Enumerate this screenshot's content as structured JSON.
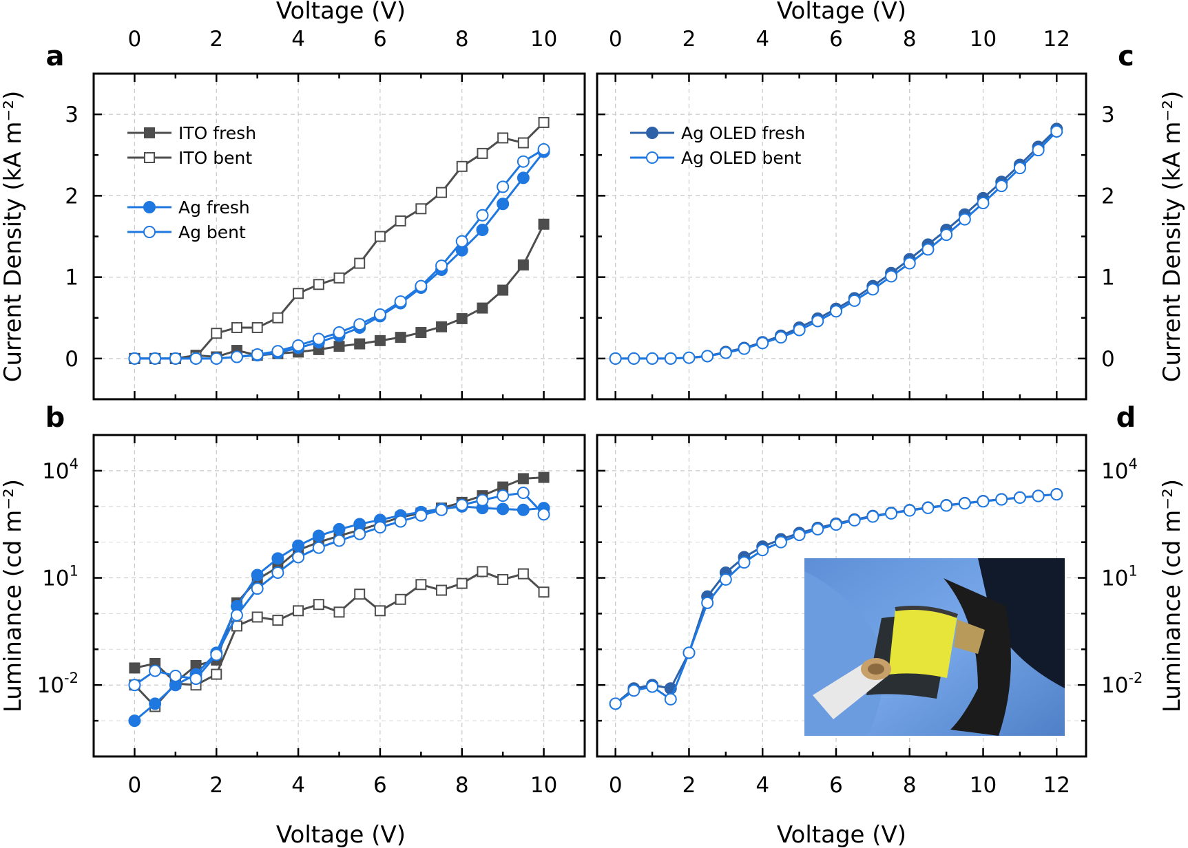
{
  "figure": {
    "top_axis_title": "Voltage (V)",
    "bottom_axis_title": "Voltage (V)",
    "inset": "photo-of-bent-flexible-oled-held-in-blue-gloves"
  },
  "chart_data": [
    {
      "id": "a",
      "panel_label": "a",
      "type": "line",
      "xlabel": "Voltage (V)",
      "ylabel": "Current Density (kA m⁻²)",
      "xlim": [
        -1,
        11
      ],
      "ylim": [
        -0.5,
        3.5
      ],
      "yscale": "linear",
      "xticks": [
        0,
        2,
        4,
        6,
        8,
        10
      ],
      "yticks": [
        0,
        1,
        2,
        3
      ],
      "grid": true,
      "legend": "top-left",
      "series": [
        {
          "name": "ITO fresh",
          "color": "#4d4d4d",
          "marker": "square",
          "filled": true,
          "x": [
            0,
            0.5,
            1,
            1.5,
            2,
            2.5,
            3,
            3.5,
            4,
            4.5,
            5,
            5.5,
            6,
            6.5,
            7,
            7.5,
            8,
            8.5,
            9,
            9.5,
            10
          ],
          "y": [
            0,
            0,
            0,
            0.04,
            0.02,
            0.1,
            0.04,
            0.06,
            0.08,
            0.11,
            0.15,
            0.18,
            0.22,
            0.26,
            0.32,
            0.39,
            0.49,
            0.62,
            0.84,
            1.15,
            1.65
          ]
        },
        {
          "name": "ITO bent",
          "color": "#4d4d4d",
          "marker": "square",
          "filled": false,
          "x": [
            0,
            0.5,
            1,
            1.5,
            2,
            2.5,
            3,
            3.5,
            4,
            4.5,
            5,
            5.5,
            6,
            6.5,
            7,
            7.5,
            8,
            8.5,
            9,
            9.5,
            10
          ],
          "y": [
            0,
            0,
            0,
            0.02,
            0.31,
            0.38,
            0.38,
            0.5,
            0.8,
            0.91,
            0.99,
            1.17,
            1.5,
            1.69,
            1.84,
            2.04,
            2.36,
            2.52,
            2.71,
            2.65,
            2.9
          ]
        },
        {
          "name": "Ag fresh",
          "color": "#1f77e0",
          "marker": "circle",
          "filled": true,
          "x": [
            0,
            0.5,
            1,
            1.5,
            2,
            2.5,
            3,
            3.5,
            4,
            4.5,
            5,
            5.5,
            6,
            6.5,
            7,
            7.5,
            8,
            8.5,
            9,
            9.5,
            10
          ],
          "y": [
            0,
            0,
            0,
            0,
            0,
            0.02,
            0.04,
            0.07,
            0.13,
            0.2,
            0.28,
            0.38,
            0.52,
            0.68,
            0.87,
            1.09,
            1.33,
            1.58,
            1.9,
            2.22,
            2.54
          ]
        },
        {
          "name": "Ag bent",
          "color": "#1f77e0",
          "marker": "circle",
          "filled": false,
          "x": [
            0,
            0.5,
            1,
            1.5,
            2,
            2.5,
            3,
            3.5,
            4,
            4.5,
            5,
            5.5,
            6,
            6.5,
            7,
            7.5,
            8,
            8.5,
            9,
            9.5,
            10
          ],
          "y": [
            0,
            0,
            0,
            0,
            0,
            0.02,
            0.05,
            0.09,
            0.16,
            0.24,
            0.32,
            0.42,
            0.54,
            0.7,
            0.89,
            1.14,
            1.44,
            1.76,
            2.11,
            2.42,
            2.57
          ]
        }
      ]
    },
    {
      "id": "b",
      "panel_label": "b",
      "type": "line",
      "xlabel": "Voltage (V)",
      "ylabel": "Luminance (cd m⁻²)",
      "xlim": [
        -1,
        11
      ],
      "ylim": [
        0.0001,
        100000
      ],
      "yscale": "log",
      "xticks": [
        0,
        2,
        4,
        6,
        8,
        10
      ],
      "yticks": [
        0.01,
        10,
        10000
      ],
      "ytick_labels": [
        {
          "base": "10",
          "exp": "-2"
        },
        {
          "base": "10",
          "exp": "1"
        },
        {
          "base": "10",
          "exp": "4"
        }
      ],
      "grid": true,
      "series": [
        {
          "name": "ITO fresh",
          "color": "#4d4d4d",
          "marker": "square",
          "filled": true,
          "x": [
            0,
            0.5,
            1,
            1.5,
            2,
            2.5,
            3,
            3.5,
            4,
            4.5,
            5,
            5.5,
            6,
            6.5,
            7,
            7.5,
            8,
            8.5,
            9,
            9.5,
            10
          ],
          "y": [
            0.03,
            0.04,
            0.012,
            0.035,
            0.05,
            2,
            9,
            20,
            60,
            100,
            150,
            220,
            330,
            500,
            650,
            900,
            1300,
            2000,
            3500,
            6000,
            6500
          ]
        },
        {
          "name": "ITO bent",
          "color": "#4d4d4d",
          "marker": "square",
          "filled": false,
          "x": [
            0,
            0.5,
            1,
            1.5,
            2,
            2.5,
            3,
            3.5,
            4,
            4.5,
            5,
            5.5,
            6,
            6.5,
            7,
            7.5,
            8,
            8.5,
            9,
            9.5,
            10
          ],
          "y": [
            0.01,
            0.0025,
            0.011,
            0.01,
            0.02,
            0.45,
            0.8,
            0.65,
            1.2,
            1.8,
            1.1,
            3.5,
            1.2,
            2.5,
            6.5,
            4.5,
            7,
            15,
            9,
            13,
            4
          ]
        },
        {
          "name": "Ag fresh",
          "color": "#1f77e0",
          "marker": "circle",
          "filled": true,
          "x": [
            0,
            0.5,
            1,
            1.5,
            2,
            2.5,
            3,
            3.5,
            4,
            4.5,
            5,
            5.5,
            6,
            6.5,
            7,
            7.5,
            8,
            8.5,
            9,
            9.5,
            10
          ],
          "y": [
            0.001,
            0.003,
            0.01,
            0.02,
            0.08,
            1.6,
            12,
            35,
            80,
            150,
            230,
            320,
            420,
            560,
            700,
            850,
            1000,
            900,
            850,
            800,
            900
          ]
        },
        {
          "name": "Ag bent",
          "color": "#1f77e0",
          "marker": "circle",
          "filled": false,
          "x": [
            0,
            0.5,
            1,
            1.5,
            2,
            2.5,
            3,
            3.5,
            4,
            4.5,
            5,
            5.5,
            6,
            6.5,
            7,
            7.5,
            8,
            8.5,
            9,
            9.5,
            10
          ],
          "y": [
            0.01,
            0.025,
            0.018,
            0.015,
            0.07,
            0.9,
            5,
            14,
            38,
            70,
            110,
            170,
            260,
            380,
            560,
            800,
            1100,
            1500,
            2000,
            2400,
            600
          ]
        }
      ]
    },
    {
      "id": "c",
      "panel_label": "c",
      "type": "line",
      "xlabel": "Voltage (V)",
      "ylabel": "Current Density (kA m⁻²)",
      "xlim": [
        -0.5,
        12.8
      ],
      "ylim": [
        -0.5,
        3.5
      ],
      "yscale": "linear",
      "xticks": [
        0,
        2,
        4,
        6,
        8,
        10,
        12
      ],
      "yticks": [
        0,
        1,
        2,
        3
      ],
      "grid": true,
      "legend": "top-left",
      "series": [
        {
          "name": "Ag OLED fresh",
          "color": "#2e62a8",
          "marker": "circle",
          "filled": true,
          "x": [
            0,
            0.5,
            1,
            1.5,
            2,
            2.5,
            3,
            3.5,
            4,
            4.5,
            5,
            5.5,
            6,
            6.5,
            7,
            7.5,
            8,
            8.5,
            9,
            9.5,
            10,
            10.5,
            11,
            11.5,
            12
          ],
          "y": [
            0,
            0,
            0,
            0,
            0.01,
            0.03,
            0.08,
            0.13,
            0.2,
            0.28,
            0.38,
            0.49,
            0.61,
            0.74,
            0.89,
            1.05,
            1.22,
            1.4,
            1.58,
            1.77,
            1.97,
            2.17,
            2.38,
            2.6,
            2.82
          ]
        },
        {
          "name": "Ag OLED bent",
          "color": "#1f77e0",
          "marker": "circle",
          "filled": false,
          "x": [
            0,
            0.5,
            1,
            1.5,
            2,
            2.5,
            3,
            3.5,
            4,
            4.5,
            5,
            5.5,
            6,
            6.5,
            7,
            7.5,
            8,
            8.5,
            9,
            9.5,
            10,
            10.5,
            11,
            11.5,
            12
          ],
          "y": [
            0,
            0,
            0,
            0,
            0.01,
            0.03,
            0.07,
            0.12,
            0.19,
            0.26,
            0.35,
            0.46,
            0.58,
            0.71,
            0.85,
            1.01,
            1.17,
            1.34,
            1.52,
            1.71,
            1.91,
            2.12,
            2.34,
            2.56,
            2.79
          ]
        }
      ]
    },
    {
      "id": "d",
      "panel_label": "d",
      "type": "line",
      "xlabel": "Voltage (V)",
      "ylabel": "Luminance (cd m⁻²)",
      "xlim": [
        -0.5,
        12.8
      ],
      "ylim": [
        0.0001,
        100000
      ],
      "yscale": "log",
      "xticks": [
        0,
        2,
        4,
        6,
        8,
        10,
        12
      ],
      "yticks": [
        0.01,
        10,
        10000
      ],
      "ytick_labels": [
        {
          "base": "10",
          "exp": "-2"
        },
        {
          "base": "10",
          "exp": "1"
        },
        {
          "base": "10",
          "exp": "4"
        }
      ],
      "grid": true,
      "series": [
        {
          "name": "Ag OLED fresh",
          "color": "#2e62a8",
          "marker": "circle",
          "filled": true,
          "x": [
            0,
            0.5,
            1,
            1.5,
            2,
            2.5,
            3,
            3.5,
            4,
            4.5,
            5,
            5.5,
            6,
            6.5,
            7,
            7.5,
            8,
            8.5,
            9,
            9.5,
            10,
            10.5,
            11,
            11.5,
            12
          ],
          "y": [
            0.003,
            0.008,
            0.01,
            0.008,
            0.08,
            3,
            14,
            38,
            75,
            120,
            180,
            250,
            330,
            430,
            540,
            660,
            790,
            930,
            1080,
            1240,
            1410,
            1590,
            1780,
            1980,
            2200
          ]
        },
        {
          "name": "Ag OLED bent",
          "color": "#1f77e0",
          "marker": "circle",
          "filled": false,
          "x": [
            0,
            0.5,
            1,
            1.5,
            2,
            2.5,
            3,
            3.5,
            4,
            4.5,
            5,
            5.5,
            6,
            6.5,
            7,
            7.5,
            8,
            8.5,
            9,
            9.5,
            10,
            10.5,
            11,
            11.5,
            12
          ],
          "y": [
            0.003,
            0.007,
            0.009,
            0.004,
            0.08,
            2,
            9,
            27,
            60,
            100,
            160,
            230,
            310,
            410,
            520,
            640,
            770,
            910,
            1060,
            1220,
            1390,
            1570,
            1760,
            1960,
            2180
          ]
        }
      ]
    }
  ]
}
